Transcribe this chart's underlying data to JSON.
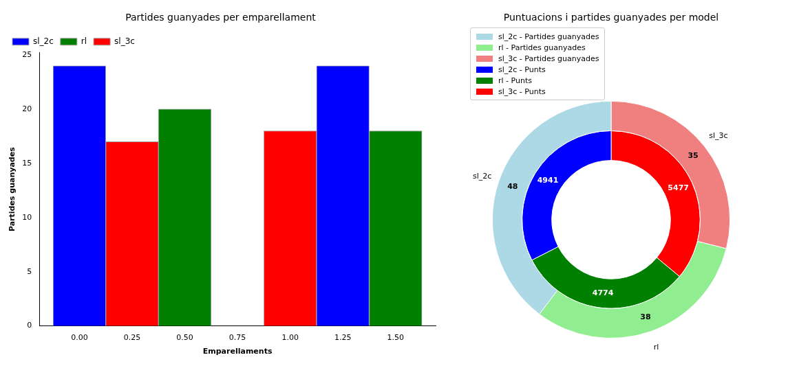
{
  "chart_data": [
    {
      "type": "bar",
      "title": "Partides guanyades per emparellament",
      "xlabel": "Emparellaments",
      "ylabel": "Partides guanyades",
      "series": [
        {
          "name": "sl_2c",
          "color": "#0000ff",
          "x": [
            0,
            1.25
          ],
          "values": [
            24,
            24
          ]
        },
        {
          "name": "rl",
          "color": "#008000",
          "x": [
            0.5,
            1.5
          ],
          "values": [
            20,
            18
          ]
        },
        {
          "name": "sl_3c",
          "color": "#ff0000",
          "x": [
            0.25,
            1.0
          ],
          "values": [
            17,
            18
          ]
        }
      ],
      "xlim": [
        -0.19,
        1.69
      ],
      "xticks": [
        {
          "value": 0,
          "label": "0.00"
        },
        {
          "value": 0.25,
          "label": "0.25"
        },
        {
          "value": 0.5,
          "label": "0.50"
        },
        {
          "value": 0.75,
          "label": "0.75"
        },
        {
          "value": 1,
          "label": "1.00"
        },
        {
          "value": 1.25,
          "label": "1.25"
        },
        {
          "value": 1.5,
          "label": "1.50"
        }
      ],
      "ylim": [
        0,
        25.2
      ],
      "yticks": [
        0,
        5,
        10,
        15,
        20,
        25
      ],
      "legend": "top left",
      "grid": false
    },
    {
      "type": "donut",
      "title": "Puntuacions i partides guanyades per model",
      "categories": [
        "sl_2c",
        "rl",
        "sl_3c"
      ],
      "series": [
        {
          "name": "- Partides guanyades",
          "colors": [
            "#add8e6",
            "#90ee90",
            "#f08080"
          ],
          "values": [
            48,
            38,
            35
          ]
        },
        {
          "name": "- Punts",
          "colors": [
            "#0000ff",
            "#008000",
            "#ff0000"
          ],
          "values": [
            4941,
            4774,
            5477
          ]
        }
      ],
      "data_labels": true,
      "legend": "top left"
    }
  ]
}
